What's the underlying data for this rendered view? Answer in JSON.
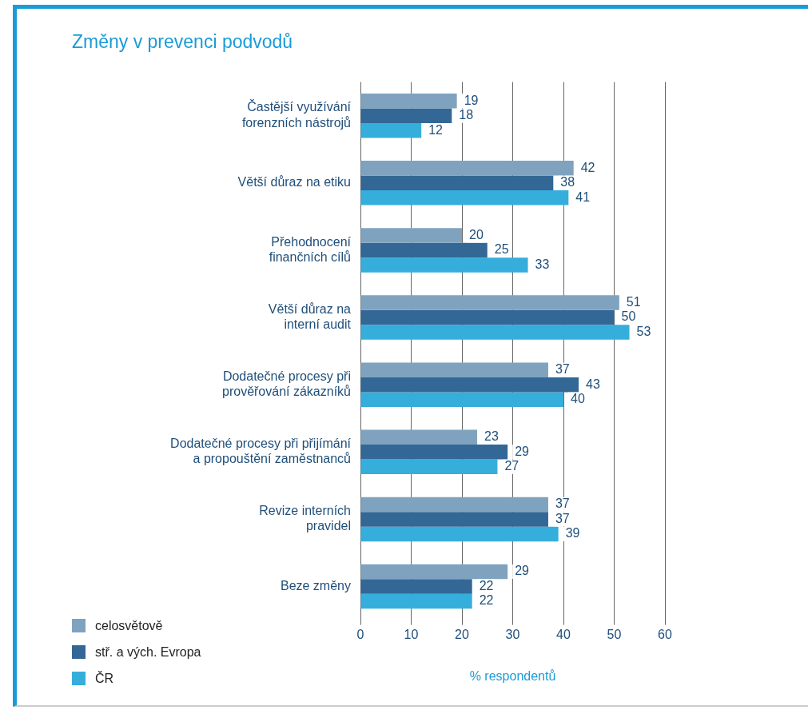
{
  "chart_data": {
    "type": "bar",
    "orientation": "horizontal",
    "title": "Změny v prevenci podvodů",
    "xlabel": "% respondentů",
    "categories": [
      "Častější využívání\nforenzních nástrojů",
      "Větší důraz na etiku",
      "Přehodnocení\nfinančních cílů",
      "Větší důraz na\ninterní audit",
      "Dodatečné procesy při\nprověřování zákazníků",
      "Dodatečné procesy při přijímání\na propouštění zaměstnanců",
      "Revize interních\npravidel",
      "Beze změny"
    ],
    "series": [
      {
        "name": "celosvětově",
        "color": "#7fa3bf",
        "values": [
          19,
          42,
          20,
          51,
          37,
          23,
          37,
          29
        ]
      },
      {
        "name": "stř. a vých. Evropa",
        "color": "#336796",
        "values": [
          18,
          38,
          25,
          50,
          43,
          29,
          37,
          22
        ]
      },
      {
        "name": "ČR",
        "color": "#36aedc",
        "values": [
          12,
          41,
          33,
          53,
          40,
          27,
          39,
          22
        ]
      }
    ],
    "xlim": [
      0,
      60
    ],
    "xticks": [
      0,
      10,
      20,
      30,
      40,
      50,
      60
    ],
    "grid": "x",
    "legend": "bottom left",
    "data_labels": true
  }
}
